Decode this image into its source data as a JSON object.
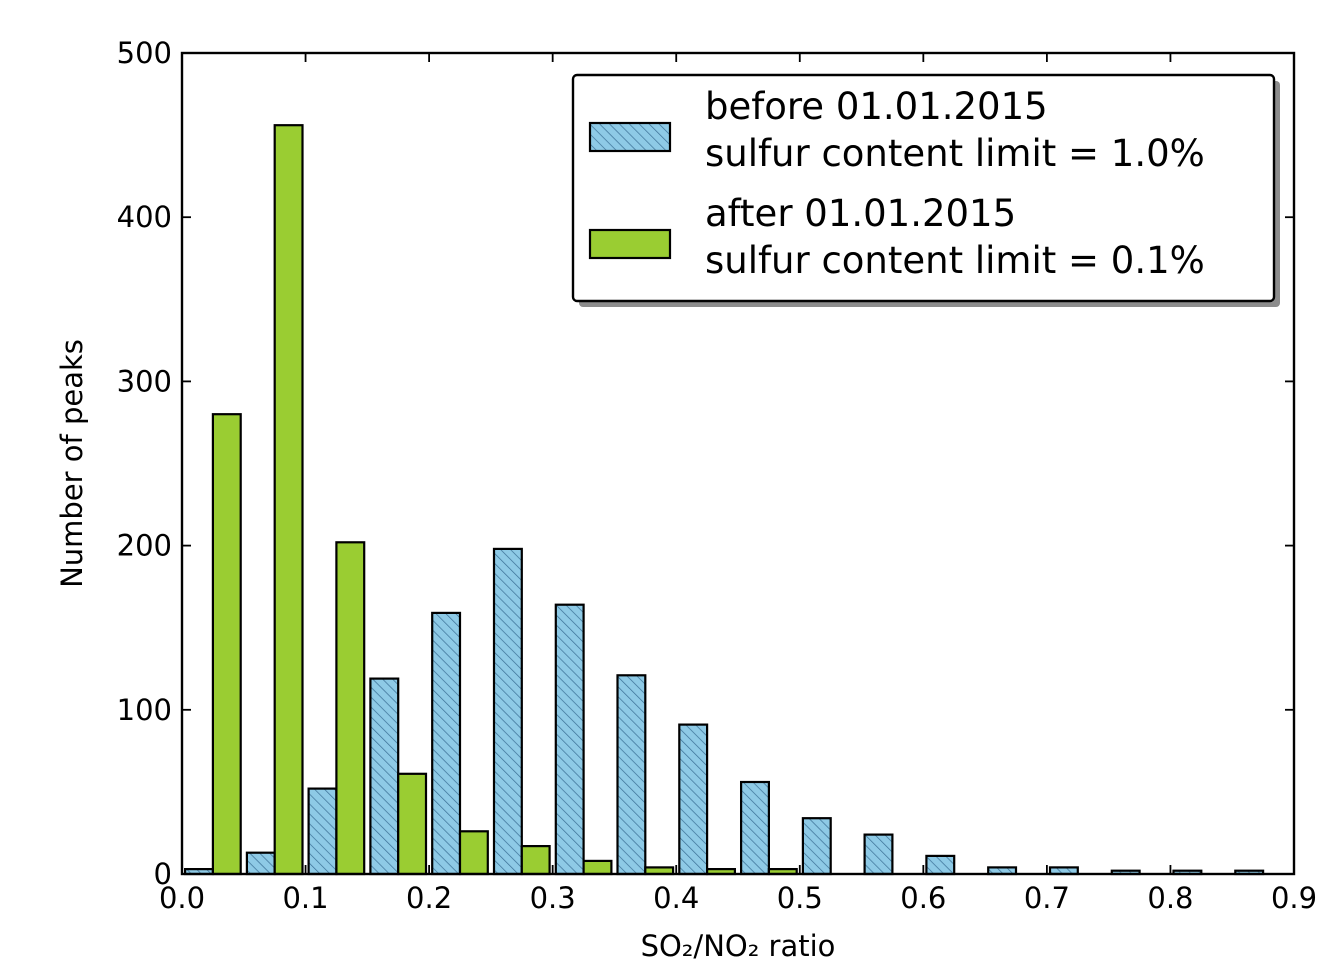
{
  "chart_data": {
    "type": "bar",
    "title": "",
    "xlabel": "SO₂/NO₂ ratio",
    "ylabel": "Number of peaks",
    "xlim": [
      0.0,
      0.9
    ],
    "ylim": [
      0,
      500
    ],
    "bin_width": 0.05,
    "bin_starts": [
      0.0,
      0.05,
      0.1,
      0.15,
      0.2,
      0.25,
      0.3,
      0.35,
      0.4,
      0.45,
      0.5,
      0.55,
      0.6,
      0.65,
      0.7,
      0.75,
      0.8,
      0.85
    ],
    "series": [
      {
        "name": "before 01.01.2015\nsulfur content limit = 1.0%",
        "color": "#8ecae6",
        "hatch": "diagonal",
        "values": [
          3,
          13,
          52,
          119,
          159,
          198,
          164,
          121,
          91,
          56,
          34,
          24,
          11,
          4,
          4,
          2,
          2,
          2
        ]
      },
      {
        "name": "after 01.01.2015\nsulfur content limit = 0.1%",
        "color": "#9acd32",
        "hatch": "none",
        "values": [
          280,
          456,
          202,
          61,
          26,
          17,
          8,
          4,
          3,
          3,
          0,
          0,
          0,
          0,
          0,
          0,
          0,
          0
        ]
      }
    ],
    "x_ticks": [
      "0.0",
      "0.1",
      "0.2",
      "0.3",
      "0.4",
      "0.5",
      "0.6",
      "0.7",
      "0.8",
      "0.9"
    ],
    "y_ticks": [
      "0",
      "100",
      "200",
      "300",
      "400",
      "500"
    ],
    "legend_position": "top-right",
    "grid": false
  }
}
